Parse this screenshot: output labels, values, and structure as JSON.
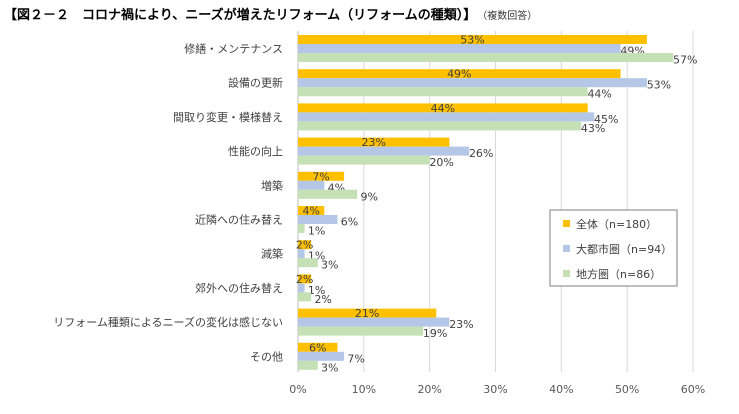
{
  "chart_data": {
    "type": "bar",
    "orientation": "horizontal",
    "title": "【図２－２　コロナ禍により、ニーズが増えたリフォーム（リフォームの種類）】",
    "subtitle": "（複数回答）",
    "categories": [
      "修繕・メンテナンス",
      "設備の更新",
      "間取り変更・模様替え",
      "性能の向上",
      "増築",
      "近隣への住み替え",
      "減築",
      "郊外への住み替え",
      "リフォーム種類によるニーズの変化は感じない",
      "その他"
    ],
    "series": [
      {
        "name": "全体（n=180）",
        "color": "#FFC000",
        "values": [
          53,
          49,
          44,
          23,
          7,
          4,
          2,
          2,
          21,
          6
        ]
      },
      {
        "name": "大都市圏（n=94）",
        "color": "#B4C7E7",
        "values": [
          49,
          53,
          45,
          26,
          4,
          6,
          1,
          1,
          23,
          7
        ]
      },
      {
        "name": "地方圏（n=86）",
        "color": "#C5E0B4",
        "values": [
          57,
          44,
          43,
          20,
          9,
          1,
          3,
          2,
          19,
          3
        ]
      }
    ],
    "xlim": [
      0,
      60
    ],
    "xticks": [
      "0%",
      "10%",
      "20%",
      "30%",
      "40%",
      "50%",
      "60%"
    ],
    "value_suffix": "%",
    "grid": true,
    "legend_position": "right"
  }
}
